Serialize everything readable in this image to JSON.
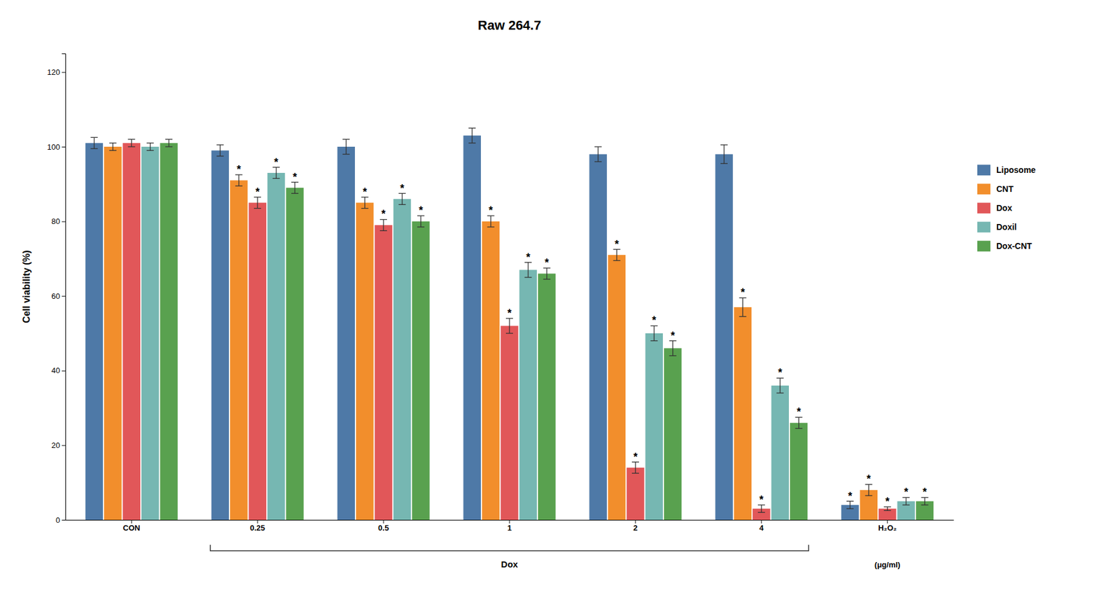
{
  "chart_data": {
    "type": "bar",
    "title": "Raw 264.7",
    "ylabel": "Cell viability (%)",
    "categories": [
      "CON",
      "0.25",
      "0.5",
      "1",
      "2",
      "4",
      "H₂O₂"
    ],
    "series": [
      {
        "name": "Liposome",
        "values": [
          101,
          99,
          100,
          103,
          98,
          98,
          4
        ],
        "errors": [
          1.5,
          1.5,
          2.0,
          2.0,
          2.0,
          2.5,
          1.0
        ],
        "stars": [
          null,
          null,
          null,
          null,
          null,
          null,
          "*"
        ]
      },
      {
        "name": "CNT",
        "values": [
          100,
          91,
          85,
          80,
          71,
          57,
          8
        ],
        "errors": [
          1.0,
          1.5,
          1.5,
          1.5,
          1.5,
          2.5,
          1.5
        ],
        "stars": [
          null,
          "*",
          "*",
          "*",
          "*",
          "*",
          "*"
        ]
      },
      {
        "name": "Dox",
        "values": [
          101,
          85,
          79,
          52,
          14,
          3,
          3
        ],
        "errors": [
          1.0,
          1.5,
          1.5,
          2.0,
          1.5,
          1.0,
          0.5
        ],
        "stars": [
          null,
          "*",
          "*",
          "*",
          "*",
          "*",
          "*"
        ]
      },
      {
        "name": "Doxil",
        "values": [
          100,
          93,
          86,
          67,
          50,
          36,
          5
        ],
        "errors": [
          1.0,
          1.5,
          1.5,
          2.0,
          2.0,
          2.0,
          1.0
        ],
        "stars": [
          null,
          "*",
          "*",
          "*",
          "*",
          "*",
          "*"
        ]
      },
      {
        "name": "Dox-CNT",
        "values": [
          101,
          89,
          80,
          66,
          46,
          26,
          5
        ],
        "errors": [
          1.0,
          1.5,
          1.5,
          1.5,
          2.0,
          1.5,
          1.0
        ],
        "stars": [
          null,
          "*",
          "*",
          "*",
          "*",
          "*",
          "*"
        ]
      }
    ],
    "annotations": [
      {
        "text": "Dox",
        "span": [
          "0.25",
          "4"
        ]
      },
      {
        "text": "(μg/ml)",
        "category": "H₂O₂"
      }
    ],
    "ylim": [
      0,
      125
    ],
    "yticks": [
      0,
      20,
      40,
      60,
      80,
      100,
      120
    ],
    "grid": false,
    "legend": "right"
  }
}
